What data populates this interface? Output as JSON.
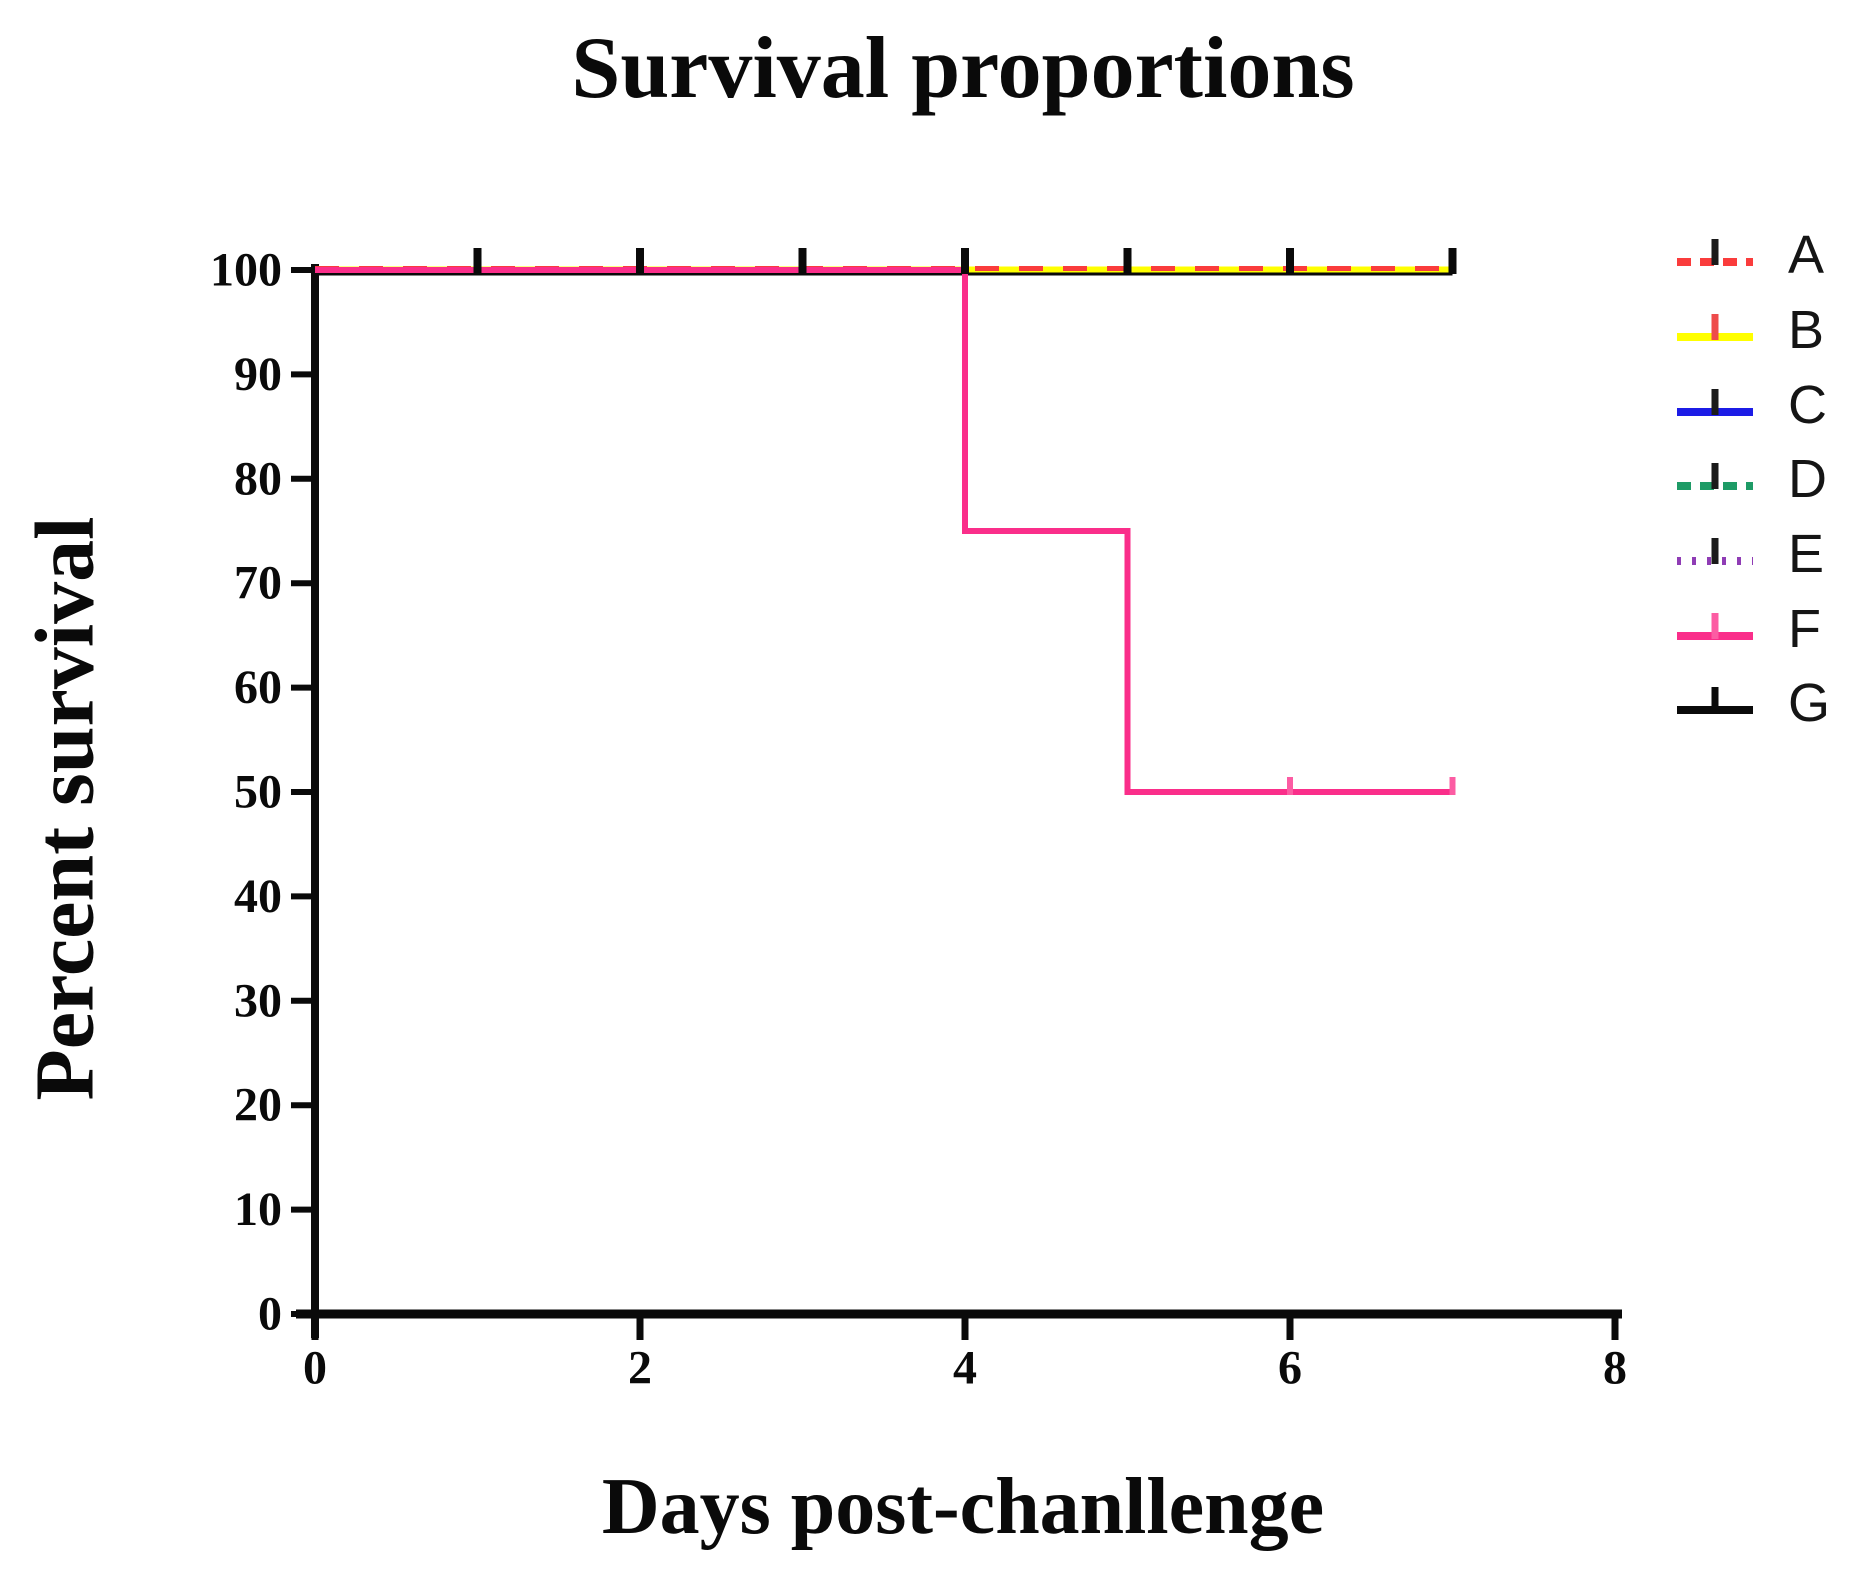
{
  "figure": {
    "background": "#ffffff",
    "axis_color": "#0a0a0a",
    "tick_label_color": "#0a0a0a"
  },
  "chart_data": {
    "type": "line",
    "subtype": "kaplan-meier-step",
    "title": "Survival proportions",
    "xlabel": "Days post-chanllenge",
    "ylabel": "Percent survival",
    "xlim": [
      0,
      8
    ],
    "ylim": [
      0,
      100
    ],
    "xticks": [
      0,
      2,
      4,
      6,
      8
    ],
    "yticks": [
      0,
      10,
      20,
      30,
      40,
      50,
      60,
      70,
      80,
      90,
      100
    ],
    "grid": false,
    "legend_position": "right",
    "draw_order": [
      "C",
      "D",
      "E",
      "G",
      "B",
      "A",
      "F"
    ],
    "series": [
      {
        "name": "A",
        "color": "#FA3C3C",
        "line_style": "dashed",
        "line_width": 5,
        "tick_color": "#1a1a1a",
        "points": [
          [
            0,
            100
          ],
          [
            7,
            100
          ]
        ],
        "censor": [],
        "censor_size": {
          "w": 8,
          "up": 22,
          "down": 4
        }
      },
      {
        "name": "B",
        "color": "#FFFF00",
        "line_style": "solid",
        "line_width": 6,
        "tick_color": "#EE4B4B",
        "points": [
          [
            0,
            100
          ],
          [
            7,
            100
          ]
        ],
        "censor": [],
        "censor_size": {
          "w": 8,
          "up": 22,
          "down": 4
        }
      },
      {
        "name": "C",
        "color": "#1C1CE6",
        "line_style": "solid",
        "line_width": 6,
        "tick_color": "#1a1a1a",
        "points": [
          [
            0,
            100
          ],
          [
            7,
            100
          ]
        ],
        "censor": [],
        "censor_size": {
          "w": 8,
          "up": 22,
          "down": 4
        }
      },
      {
        "name": "D",
        "color": "#1E9B66",
        "line_style": "dashed",
        "line_width": 6,
        "tick_color": "#1a1a1a",
        "points": [
          [
            0,
            100
          ],
          [
            7,
            100
          ]
        ],
        "censor": [],
        "censor_size": {
          "w": 8,
          "up": 22,
          "down": 4
        }
      },
      {
        "name": "E",
        "color": "#8F3CB5",
        "line_style": "dotted",
        "line_width": 6,
        "tick_color": "#1a1a1a",
        "points": [
          [
            0,
            100
          ],
          [
            7,
            100
          ]
        ],
        "censor": [],
        "censor_size": {
          "w": 8,
          "up": 22,
          "down": 4
        }
      },
      {
        "name": "F",
        "color": "#FA2E8A",
        "line_style": "solid",
        "line_width": 6,
        "tick_color": "#FC5CA3",
        "points": [
          [
            0,
            100
          ],
          [
            4,
            100
          ],
          [
            4,
            75
          ],
          [
            5,
            75
          ],
          [
            5,
            50
          ],
          [
            7,
            50
          ]
        ],
        "censor": [
          [
            6,
            50
          ],
          [
            7,
            50
          ]
        ],
        "censor_size": {
          "w": 6,
          "up": 15,
          "down": 3
        }
      },
      {
        "name": "G",
        "color": "#0a0a0a",
        "line_style": "solid",
        "line_width": 6,
        "tick_color": "#0a0a0a",
        "points": [
          [
            0,
            100
          ],
          [
            7,
            100
          ]
        ],
        "censor": [
          [
            1,
            100
          ],
          [
            2,
            100
          ],
          [
            3,
            100
          ],
          [
            4,
            100
          ],
          [
            5,
            100
          ],
          [
            6,
            100
          ],
          [
            7,
            100
          ]
        ],
        "censor_size": {
          "w": 8,
          "up": 22,
          "down": 4
        }
      }
    ]
  }
}
